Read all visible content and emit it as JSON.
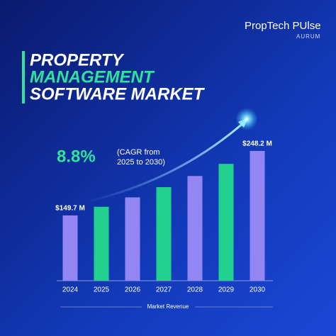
{
  "header": {
    "brand": "PropTech PUlse",
    "sub_brand": "AURUM"
  },
  "chart_data": {
    "type": "bar",
    "title_lines": [
      "PROPERTY",
      "MANAGEMENT",
      "SOFTWARE MARKET"
    ],
    "title_colors": [
      "#ffffff",
      "#2fe39a",
      "#ffffff"
    ],
    "cagr": "8.8%",
    "cagr_note": [
      "(CAGR from",
      "2025 to 2030)"
    ],
    "x_label": "Market Revenue",
    "categories": [
      "2024",
      "2025",
      "2026",
      "2027",
      "2028",
      "2029",
      "2030"
    ],
    "values": [
      149.7,
      162.9,
      177.3,
      192.9,
      209.9,
      228.4,
      248.2
    ],
    "value_labels": [
      "$149.7 M",
      null,
      null,
      null,
      null,
      null,
      "$248.2 M"
    ],
    "colors": [
      "#9486f2",
      "#22d18e",
      "#9486f2",
      "#22d18e",
      "#9486f2",
      "#22d18e",
      "#9486f2"
    ],
    "ylim": [
      50,
      260
    ]
  }
}
